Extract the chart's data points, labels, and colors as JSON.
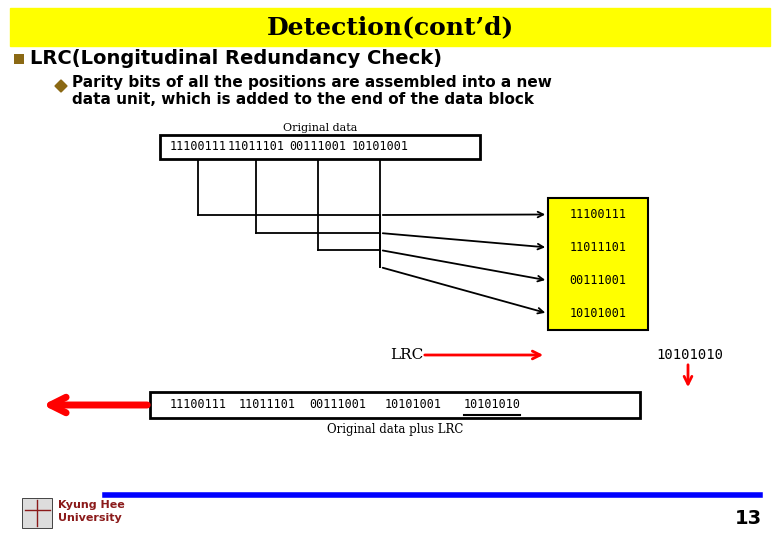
{
  "title": "Detection(cont’d)",
  "title_bg": "#FFFF00",
  "title_color": "#000000",
  "title_fontsize": 18,
  "bullet1": "LRC(Longitudinal Redundancy Check)",
  "bullet1_fontsize": 14,
  "bullet2_line1": "Parity bits of all the positions are assembled into a new",
  "bullet2_line2": "data unit, which is added to the end of the data block",
  "bullet2_fontsize": 11,
  "orig_data_label": "Original data",
  "orig_data_plus_label": "Original data plus LRC",
  "lrc_label": "LRC",
  "top_box_values": [
    "11100111",
    "11011101",
    "00111001",
    "10101001"
  ],
  "bottom_box_values": [
    "11100111",
    "11011101",
    "00111001",
    "10101001",
    "10101010"
  ],
  "right_box_values": [
    "11100111",
    "11011101",
    "00111001",
    "10101001"
  ],
  "lrc_value": "10101010",
  "right_box_bg": "#FFFF00",
  "bottom_line_color": "#0000FF",
  "red_color": "#FF0000",
  "black": "#000000",
  "white": "#FFFFFF",
  "page_num": "13",
  "kyung_hee_line1": "Kyung Hee",
  "kyung_hee_line2": "University",
  "kyung_hee_color": "#8B1A1A",
  "bullet_color": "#8B6914",
  "diagram_font": 8.5
}
